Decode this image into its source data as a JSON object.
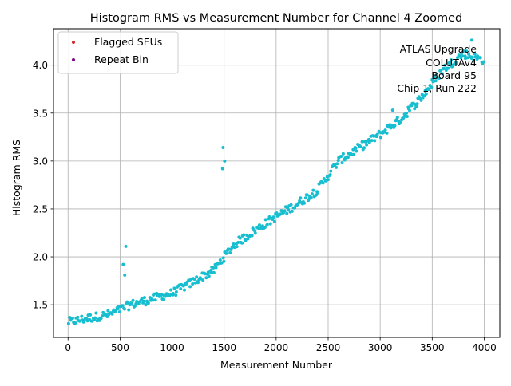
{
  "chart_data": {
    "type": "scatter",
    "title": "Histogram RMS vs Measurement Number for Channel 4 Zoomed",
    "xlabel": "Measurement Number",
    "ylabel": "Histogram RMS",
    "xlim": [
      -140,
      4150
    ],
    "ylim": [
      1.16,
      4.38
    ],
    "x_ticks": [
      0,
      500,
      1000,
      1500,
      2000,
      2500,
      3000,
      3500,
      4000
    ],
    "x_tick_labels": [
      "0",
      "500",
      "1000",
      "1500",
      "2000",
      "2500",
      "3000",
      "3500",
      "4000"
    ],
    "y_ticks": [
      1.5,
      2.0,
      2.5,
      3.0,
      3.5,
      4.0
    ],
    "y_tick_labels": [
      "1.5",
      "2.0",
      "2.5",
      "3.0",
      "3.5",
      "4.0"
    ],
    "grid": true,
    "legend_position": "upper-left",
    "legend": [
      {
        "label": "Flagged SEUs",
        "color": "#d62728"
      },
      {
        "label": "Repeat Bin",
        "color": "#800080"
      }
    ],
    "annotation": {
      "position": "upper-right",
      "lines": [
        "ATLAS Upgrade",
        "COLUTAv4",
        "Board 95",
        "Chip 1, Run 222"
      ]
    },
    "series": [
      {
        "color": "#17becf",
        "trend": [
          [
            0,
            1.32
          ],
          [
            200,
            1.36
          ],
          [
            400,
            1.4
          ],
          [
            600,
            1.5
          ],
          [
            800,
            1.56
          ],
          [
            1000,
            1.62
          ],
          [
            1200,
            1.74
          ],
          [
            1400,
            1.86
          ],
          [
            1500,
            2.0
          ],
          [
            1600,
            2.13
          ],
          [
            1800,
            2.28
          ],
          [
            2000,
            2.42
          ],
          [
            2200,
            2.55
          ],
          [
            2400,
            2.7
          ],
          [
            2600,
            3.0
          ],
          [
            2800,
            3.14
          ],
          [
            3000,
            3.28
          ],
          [
            3200,
            3.44
          ],
          [
            3400,
            3.67
          ],
          [
            3600,
            3.95
          ],
          [
            3800,
            4.12
          ],
          [
            4000,
            4.05
          ]
        ],
        "spread": 0.045,
        "count": 420,
        "outliers": [
          [
            555,
            2.11
          ],
          [
            530,
            1.92
          ],
          [
            545,
            1.81
          ],
          [
            1490,
            3.14
          ],
          [
            1485,
            2.92
          ],
          [
            1505,
            3.0
          ],
          [
            1375,
            1.86
          ],
          [
            3120,
            3.53
          ],
          [
            3880,
            4.26
          ],
          [
            3270,
            3.56
          ]
        ]
      }
    ]
  }
}
